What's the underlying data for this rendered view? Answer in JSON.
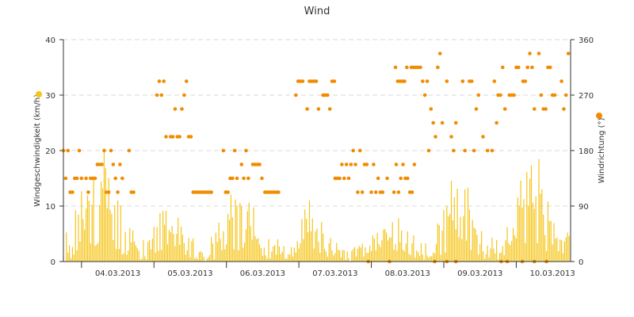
{
  "chart_data": {
    "type": "scatter+bar",
    "title": "Wind",
    "ylabel_left": "Windgeschwindigkeit (km/h)",
    "ylabel_right": "Windrichtung (°)",
    "ylim_left": [
      0,
      40
    ],
    "ylim_right": [
      0,
      360
    ],
    "yticks_left": [
      "0",
      "10",
      "20",
      "30",
      "40"
    ],
    "yticks_right": [
      "0",
      "90",
      "180",
      "270",
      "360"
    ],
    "grid": "horizontal dashed",
    "x_range_hours": [
      0,
      168
    ],
    "x_start": "03.03.2013 18:00",
    "xticks": [
      "04.03.2013",
      "05.03.2013",
      "06.03.2013",
      "07.03.2013",
      "08.03.2013",
      "09.03.2013",
      "10.03.2013"
    ],
    "colors": {
      "speed": "#f5c518",
      "direction": "#f08c00",
      "grid": "#d8d8d8",
      "axis": "#333333"
    },
    "series": [
      {
        "name": "Windgeschwindigkeit (km/h)",
        "axis": "left",
        "kind": "bar",
        "days": [
          {
            "start": 0,
            "peak_hour": 12,
            "peak": 19,
            "base": 6
          },
          {
            "start": 24,
            "peak_hour": 35,
            "peak": 9,
            "base": 3
          },
          {
            "start": 48,
            "peak_hour": 58,
            "peak": 12,
            "base": 4
          },
          {
            "start": 72,
            "peak_hour": 82,
            "peak": 10,
            "base": 2
          },
          {
            "start": 96,
            "peak_hour": 110,
            "peak": 8,
            "base": 3
          },
          {
            "start": 120,
            "peak_hour": 131,
            "peak": 14,
            "base": 4
          },
          {
            "start": 144,
            "peak_hour": 156,
            "peak": 18,
            "base": 5
          }
        ]
      },
      {
        "name": "Windrichtung (°)",
        "axis": "right",
        "kind": "scatter",
        "segments": [
          {
            "from": 0,
            "to": 24,
            "center": 145,
            "spread": 45
          },
          {
            "from": 31,
            "to": 43,
            "center": 240,
            "spread": 50
          },
          {
            "from": 43,
            "to": 50,
            "center": 110,
            "spread": 8
          },
          {
            "from": 53,
            "to": 66,
            "center": 145,
            "spread": 40
          },
          {
            "from": 66,
            "to": 72,
            "center": 110,
            "spread": 10
          },
          {
            "from": 77,
            "to": 90,
            "center": 270,
            "spread": 30
          },
          {
            "from": 90,
            "to": 96,
            "center": 145,
            "spread": 20
          },
          {
            "from": 96,
            "to": 117,
            "center": 140,
            "spread": 35
          },
          {
            "from": 110,
            "to": 121,
            "center": 300,
            "spread": 25
          },
          {
            "from": 121,
            "to": 144,
            "center": 260,
            "spread": 90
          },
          {
            "from": 144,
            "to": 168,
            "center": 290,
            "spread": 55
          }
        ]
      }
    ]
  }
}
